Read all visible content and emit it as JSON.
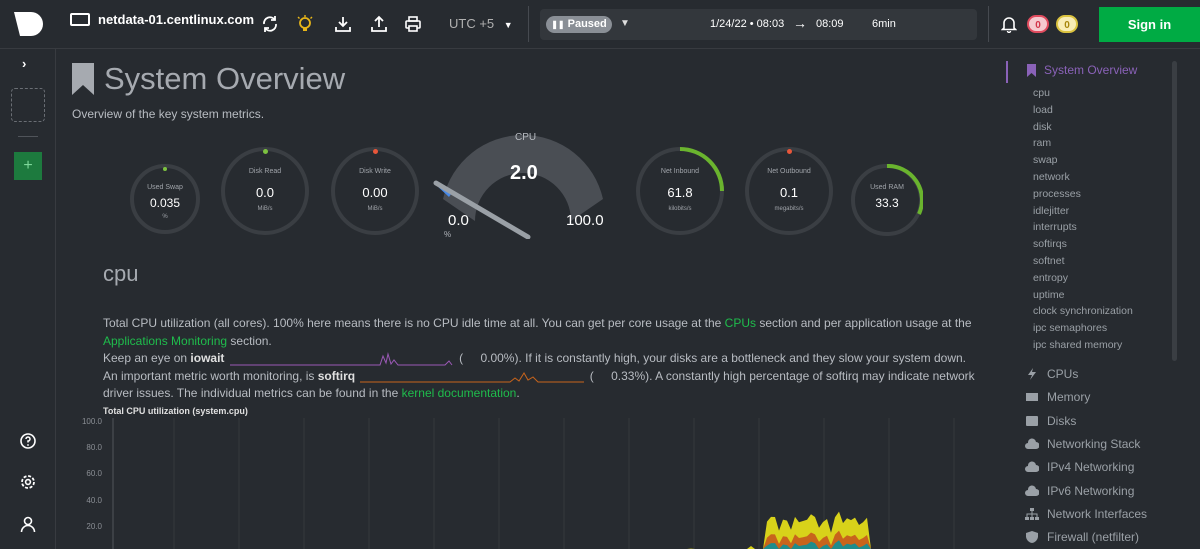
{
  "topbar": {
    "hostname": "netdata-01.centlinux.com",
    "timezone": "UTC +5",
    "paused_label": "Paused",
    "time_start": "1/24/22 • 08:03",
    "time_end": "08:09",
    "duration": "6min",
    "alerts_critical": "0",
    "alerts_warning": "0",
    "signin_label": "Sign in"
  },
  "page": {
    "title": "System Overview",
    "subtitle": "Overview of the key system metrics."
  },
  "gauges": {
    "used_swap": {
      "title": "Used Swap",
      "value": "0.035",
      "unit": "%"
    },
    "disk_read": {
      "title": "Disk Read",
      "value": "0.0",
      "unit": "MiB/s"
    },
    "disk_write": {
      "title": "Disk Write",
      "value": "0.00",
      "unit": "MiB/s"
    },
    "cpu": {
      "title": "CPU",
      "value": "2.0",
      "min": "0.0",
      "max": "100.0",
      "unit": "%"
    },
    "net_inbound": {
      "title": "Net Inbound",
      "value": "61.8",
      "unit": "kilobits/s"
    },
    "net_outbound": {
      "title": "Net Outbound",
      "value": "0.1",
      "unit": "megabits/s"
    },
    "used_ram": {
      "title": "Used RAM",
      "value": "33.3",
      "unit": "%"
    }
  },
  "cpu_section": {
    "title": "cpu",
    "p1_a": "Total CPU utilization (all cores). 100% here means there is no CPU idle time at all. You can get per core usage at the ",
    "p1_link1": "CPUs",
    "p1_b": " section and per application usage at the ",
    "p1_link2": "Applications Monitoring",
    "p1_c": " section.",
    "p2_a": "Keep an eye on ",
    "p2_bold": "iowait",
    "p2_open": " ( ",
    "p2_val": "0.00%",
    "p2_b": "). If it is constantly high, your disks are a bottleneck and they slow your system down.",
    "p3_a": "An important metric worth monitoring, is ",
    "p3_bold": "softirq",
    "p3_open": " ( ",
    "p3_val": "0.33%",
    "p3_b": "). A constantly high percentage of softirq may indicate network driver issues. The individual metrics can be found in the ",
    "p3_link": "kernel documentation",
    "p3_c": ".",
    "chart_title": "Total CPU utilization (system.cpu)"
  },
  "chart_axis": {
    "yticks": [
      "100.0",
      "80.0",
      "60.0",
      "40.0",
      "20.0"
    ]
  },
  "chart_data": {
    "type": "area",
    "title": "Total CPU utilization (system.cpu)",
    "ylim": [
      0,
      100
    ],
    "note": "stacked area; visible spikes between x 0.68-0.83 reaching ~45"
  },
  "rightnav": {
    "active": "System Overview",
    "subitems": [
      "cpu",
      "load",
      "disk",
      "ram",
      "swap",
      "network",
      "processes",
      "idlejitter",
      "interrupts",
      "softirqs",
      "softnet",
      "entropy",
      "uptime",
      "clock synchronization",
      "ipc semaphores",
      "ipc shared memory"
    ],
    "sections": [
      "CPUs",
      "Memory",
      "Disks",
      "Networking Stack",
      "IPv4 Networking",
      "IPv6 Networking",
      "Network Interfaces",
      "Firewall (netfilter)"
    ]
  },
  "colors": {
    "accent_green": "#00ab44",
    "link_green": "#1fbc4c",
    "active_purple": "#8a62b8"
  }
}
